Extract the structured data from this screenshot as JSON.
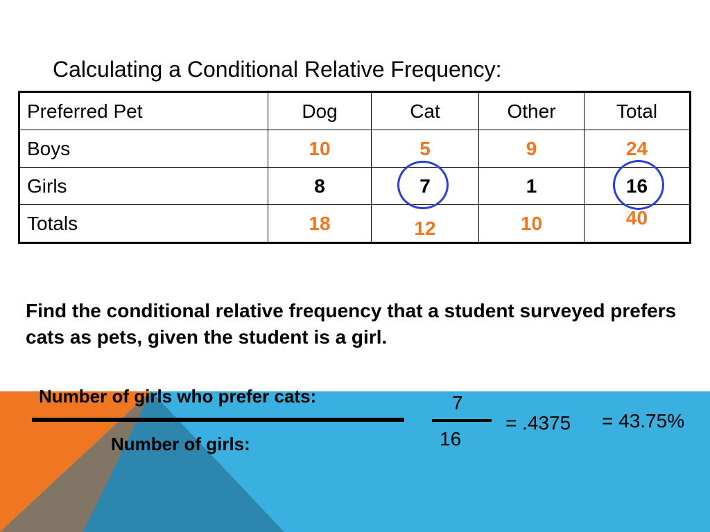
{
  "slide": {
    "title": "Calculating a Conditional Relative Frequency:",
    "accent_orange": "#f07722",
    "accent_blue": "#3ab0e0",
    "circle_color": "#2b3fd6"
  },
  "table": {
    "header": [
      "Preferred Pet",
      "Dog",
      "Cat",
      "Other",
      "Total"
    ],
    "rows": [
      {
        "label": "Boys",
        "cells": [
          "10",
          "5",
          "9",
          "24"
        ]
      },
      {
        "label": "Girls",
        "cells": [
          "8",
          "7",
          "1",
          "16"
        ]
      },
      {
        "label": "Totals",
        "cells": [
          "18",
          "12",
          "10",
          "40"
        ]
      }
    ]
  },
  "question": "Find the conditional relative frequency that a student surveyed prefers cats as pets, given the student is a girl.",
  "formula": {
    "numerator_label": "Number of girls who prefer cats:",
    "denominator_label": "Number of girls:",
    "numerator_value": "7",
    "denominator_value": "16",
    "decimal_result": "= .4375",
    "percent_result": "= 43.75%"
  }
}
